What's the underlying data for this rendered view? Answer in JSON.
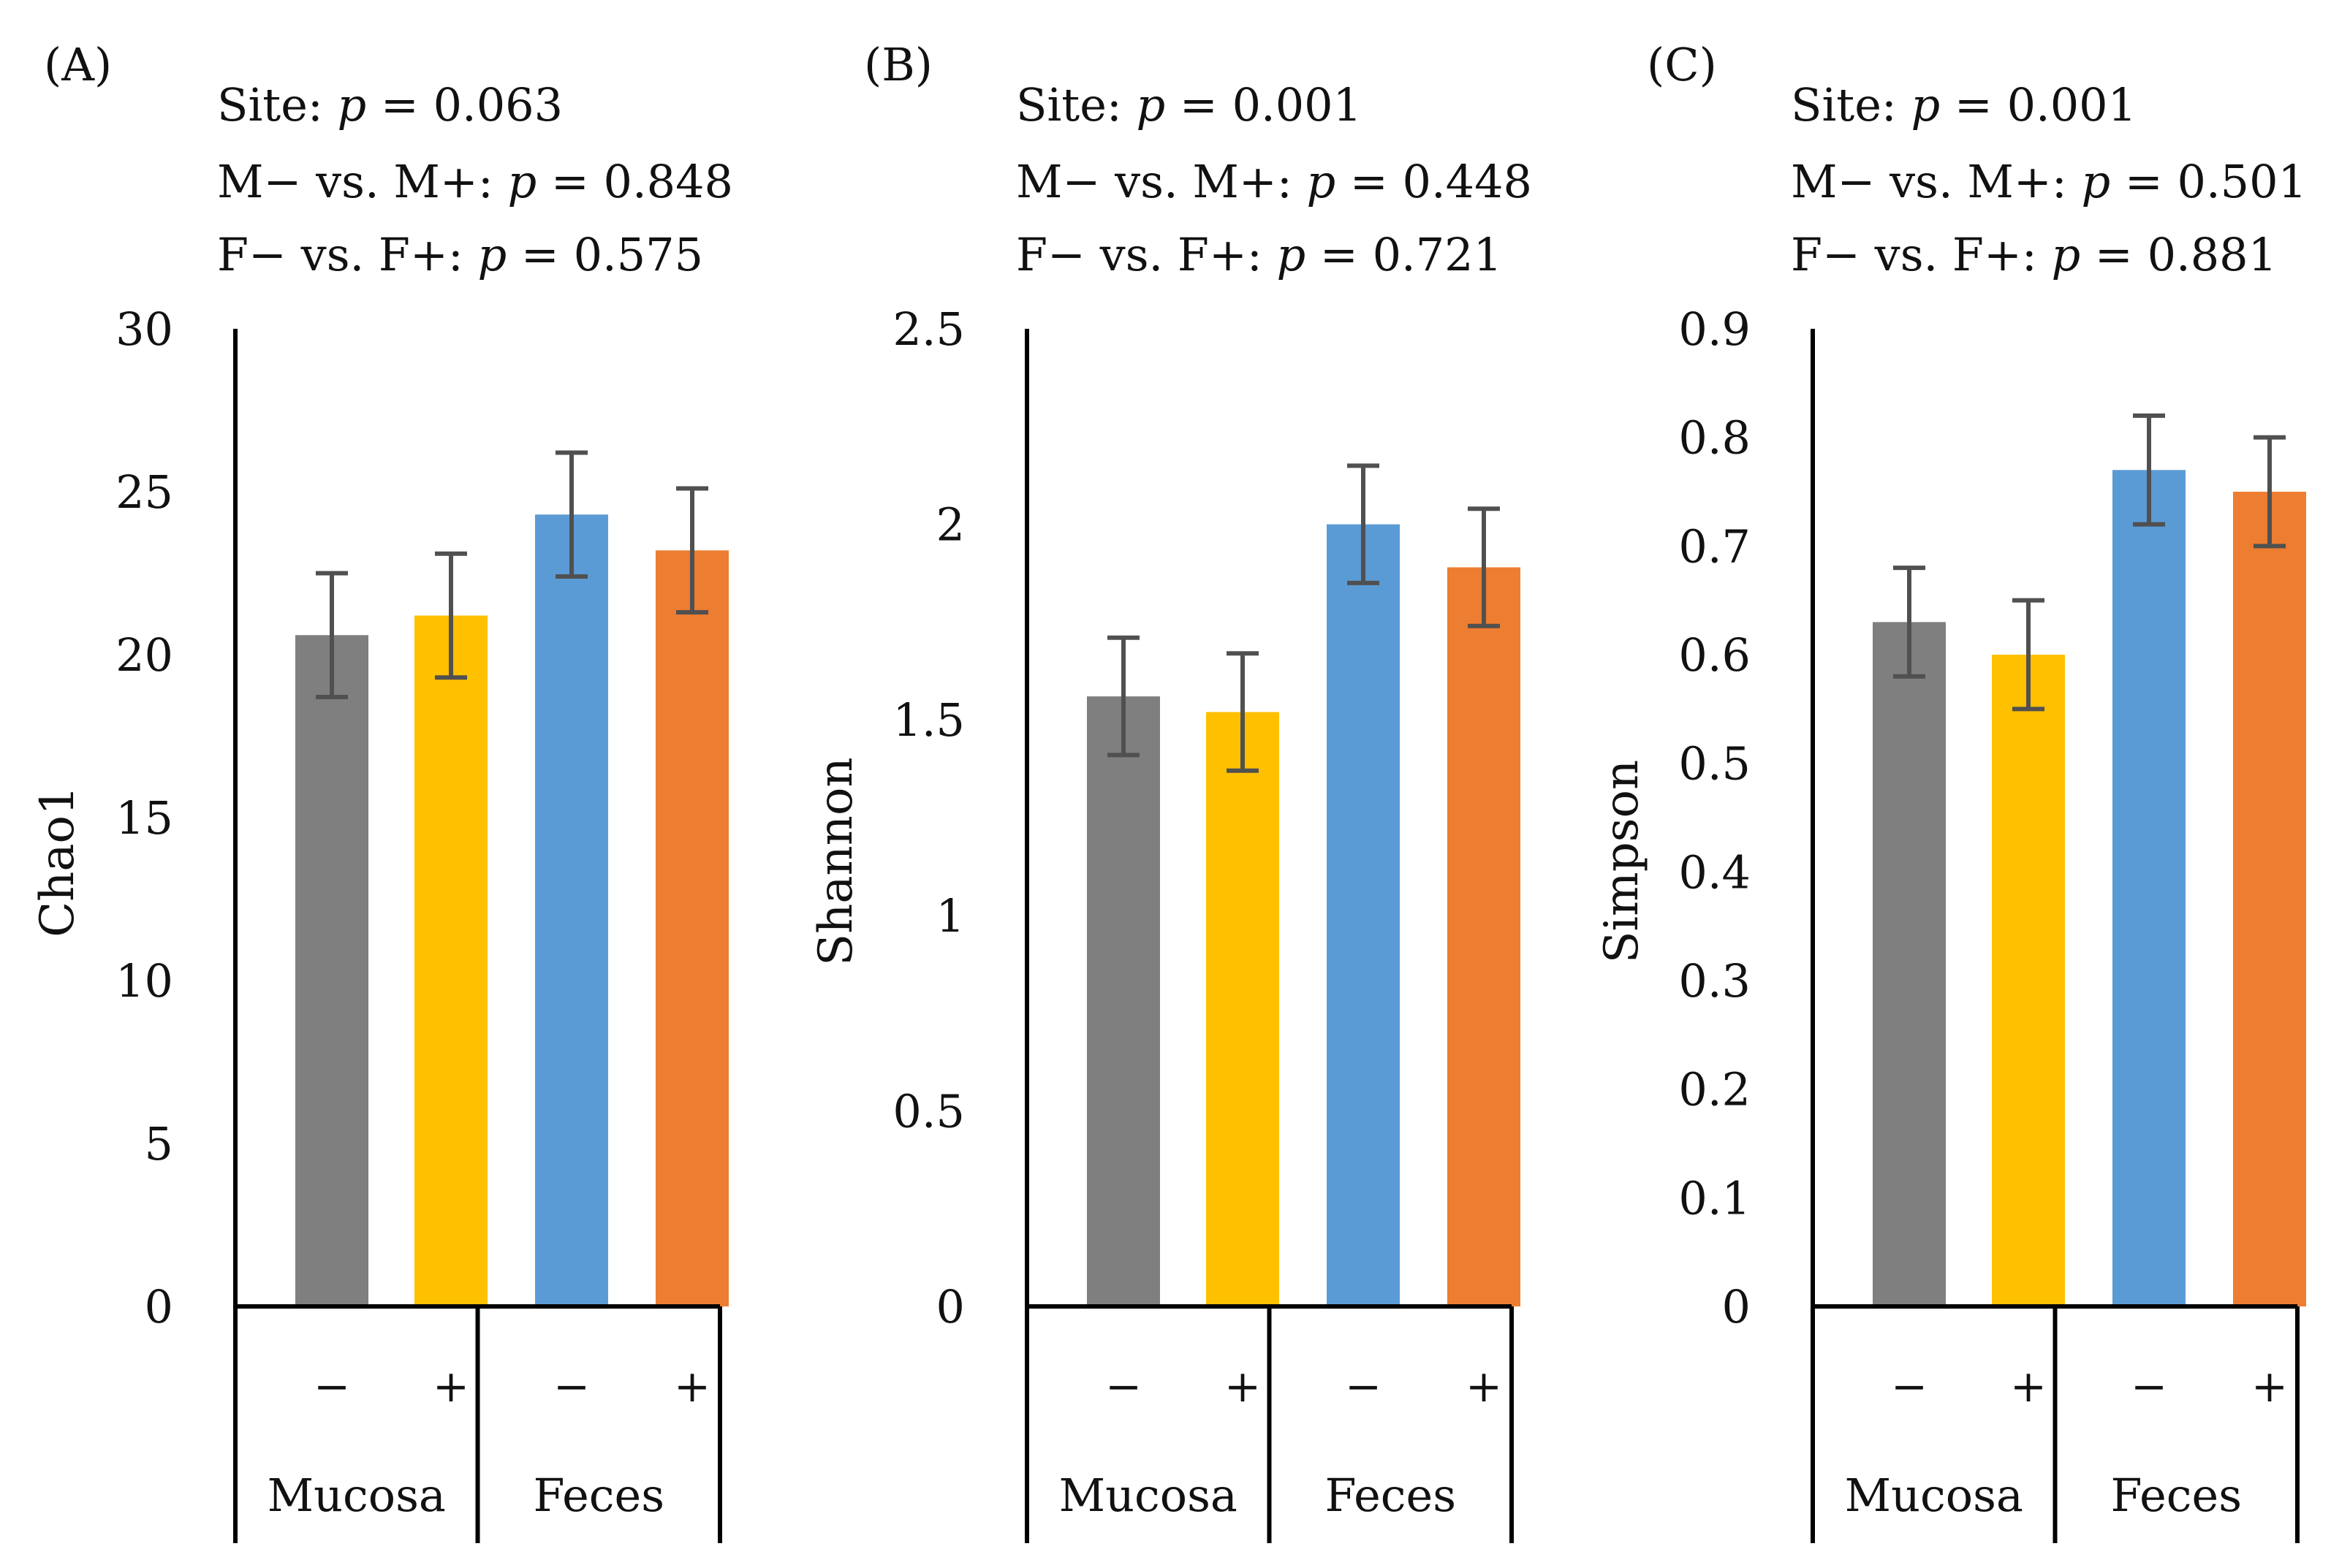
{
  "figure": {
    "categories_note": "Mucosa -, Mucosa +, Feces -, Feces +"
  },
  "chart_data": [
    {
      "type": "bar",
      "panel_label": "(A)",
      "ylabel": "Chao1",
      "ylim": [
        0,
        30
      ],
      "yticks": [
        0,
        5,
        10,
        15,
        20,
        25,
        30
      ],
      "ytick_labels": [
        "0",
        "5",
        "10",
        "15",
        "20",
        "25",
        "30"
      ],
      "stats": [
        {
          "prefix": "Site: ",
          "p": "p",
          "eq": " = 0.063"
        },
        {
          "prefix": "M− vs. M+: ",
          "p": "p",
          "eq": " = 0.848"
        },
        {
          "prefix": "F− vs. F+: ",
          "p": "p",
          "eq": " = 0.575"
        }
      ],
      "categories": [
        "−",
        "+",
        "−",
        "+"
      ],
      "groups": [
        "Mucosa",
        "Feces"
      ],
      "values": [
        20.6,
        21.2,
        24.3,
        23.2
      ],
      "errors": [
        1.9,
        1.9,
        1.9,
        1.9
      ],
      "colors": [
        "#7f7f7f",
        "#ffc000",
        "#5b9bd5",
        "#ed7d31"
      ]
    },
    {
      "type": "bar",
      "panel_label": "(B)",
      "ylabel": "Shannon",
      "ylim": [
        0,
        2.5
      ],
      "yticks": [
        0,
        0.5,
        1,
        1.5,
        2,
        2.5
      ],
      "ytick_labels": [
        "0",
        "0.5",
        "1",
        "1.5",
        "2",
        "2.5"
      ],
      "stats": [
        {
          "prefix": "Site: ",
          "p": "p",
          "eq": " = 0.001"
        },
        {
          "prefix": "M− vs. M+: ",
          "p": "p",
          "eq": " = 0.448"
        },
        {
          "prefix": "F− vs. F+: ",
          "p": "p",
          "eq": " = 0.721"
        }
      ],
      "categories": [
        "−",
        "+",
        "−",
        "+"
      ],
      "groups": [
        "Mucosa",
        "Feces"
      ],
      "values": [
        1.56,
        1.52,
        2.0,
        1.89
      ],
      "errors": [
        0.15,
        0.15,
        0.15,
        0.15
      ],
      "colors": [
        "#7f7f7f",
        "#ffc000",
        "#5b9bd5",
        "#ed7d31"
      ]
    },
    {
      "type": "bar",
      "panel_label": "(C)",
      "ylabel": "Simpson",
      "ylim": [
        0,
        0.9
      ],
      "yticks": [
        0,
        0.1,
        0.2,
        0.3,
        0.4,
        0.5,
        0.6,
        0.7,
        0.8,
        0.9
      ],
      "ytick_labels": [
        "0",
        "0.1",
        "0.2",
        "0.3",
        "0.4",
        "0.5",
        "0.6",
        "0.7",
        "0.8",
        "0.9"
      ],
      "stats": [
        {
          "prefix": "Site: ",
          "p": "p",
          "eq": " = 0.001"
        },
        {
          "prefix": "M− vs. M+: ",
          "p": "p",
          "eq": " = 0.501"
        },
        {
          "prefix": "F− vs. F+: ",
          "p": "p",
          "eq": " = 0.881"
        }
      ],
      "categories": [
        "−",
        "+",
        "−",
        "+"
      ],
      "groups": [
        "Mucosa",
        "Feces"
      ],
      "values": [
        0.63,
        0.6,
        0.77,
        0.75
      ],
      "errors": [
        0.05,
        0.05,
        0.05,
        0.05
      ],
      "colors": [
        "#7f7f7f",
        "#ffc000",
        "#5b9bd5",
        "#ed7d31"
      ]
    }
  ]
}
